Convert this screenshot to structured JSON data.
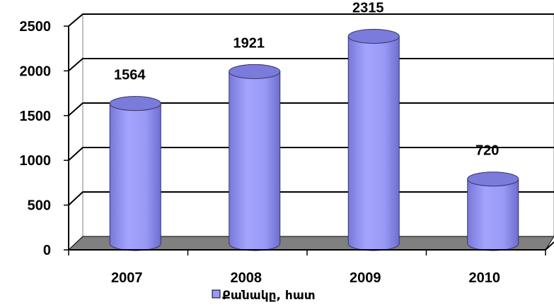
{
  "chart_data": {
    "type": "bar",
    "style": "3d-cylinder",
    "categories": [
      "2007",
      "2008",
      "2009",
      "2010"
    ],
    "series": [
      {
        "name": "Քանակը, հատ",
        "values": [
          1564,
          1921,
          2315,
          720
        ]
      }
    ],
    "data_labels": [
      "1564",
      "1921",
      "2315",
      "720"
    ],
    "y_ticks": [
      "0",
      "500",
      "1000",
      "1500",
      "2000",
      "2500"
    ],
    "ylim": [
      0,
      2500
    ],
    "grid": true,
    "legend_position": "bottom",
    "colors": {
      "bar_fill": "#9999ff",
      "bar_top": "#7b7bdb",
      "bar_outline": "#333366",
      "floor": "#808080",
      "gridline": "#000000"
    }
  }
}
